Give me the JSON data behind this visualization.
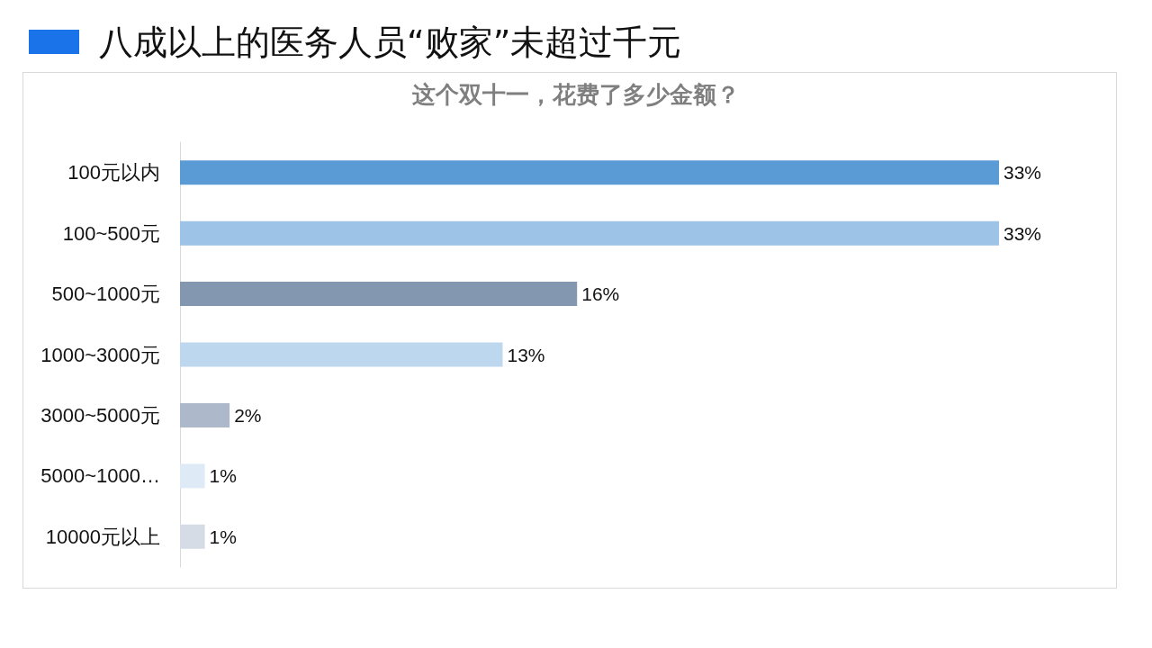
{
  "chart_data": {
    "type": "bar",
    "orientation": "horizontal",
    "title": "八成以上的医务人员“败家”未超过千元",
    "subtitle": "这个双十一，花费了多少金额？",
    "categories": [
      "100元以内",
      "100~500元",
      "500~1000元",
      "1000~3000元",
      "3000~5000元",
      "5000~1000…",
      "10000元以上"
    ],
    "values": [
      33,
      33,
      16,
      13,
      2,
      1,
      1
    ],
    "value_labels": [
      "33%",
      "33%",
      "16%",
      "13%",
      "2%",
      "1%",
      "1%"
    ],
    "colors": [
      "#5b9bd5",
      "#9dc3e6",
      "#8497b0",
      "#bdd7ee",
      "#adb9ca",
      "#deebf7",
      "#d6dce5"
    ]
  }
}
